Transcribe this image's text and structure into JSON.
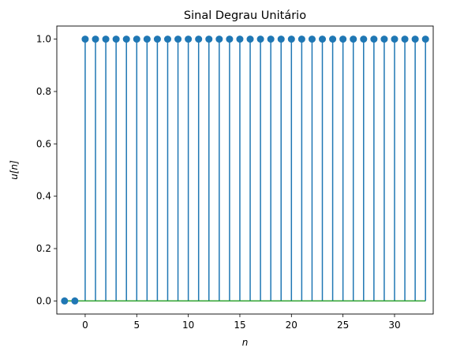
{
  "chart_data": {
    "type": "stem",
    "title": "Sinal Degrau Unitário",
    "xlabel": "n",
    "ylabel": "u[n]",
    "xlim": [
      -2.75,
      33.75
    ],
    "ylim": [
      -0.05,
      1.05
    ],
    "xticks": [
      0,
      5,
      10,
      15,
      20,
      25,
      30
    ],
    "xtick_labels": [
      "0",
      "5",
      "10",
      "15",
      "20",
      "25",
      "30"
    ],
    "yticks": [
      0.0,
      0.2,
      0.4,
      0.6,
      0.8,
      1.0
    ],
    "ytick_labels": [
      "0.0",
      "0.2",
      "0.4",
      "0.6",
      "0.8",
      "1.0"
    ],
    "grid": false,
    "series": [
      {
        "x": [
          -2,
          -1,
          0,
          1,
          2,
          3,
          4,
          5,
          6,
          7,
          8,
          9,
          10,
          11,
          12,
          13,
          14,
          15,
          16,
          17,
          18,
          19,
          20,
          21,
          22,
          23,
          24,
          25,
          26,
          27,
          28,
          29,
          30,
          31,
          32,
          33
        ],
        "y": [
          0,
          0,
          1,
          1,
          1,
          1,
          1,
          1,
          1,
          1,
          1,
          1,
          1,
          1,
          1,
          1,
          1,
          1,
          1,
          1,
          1,
          1,
          1,
          1,
          1,
          1,
          1,
          1,
          1,
          1,
          1,
          1,
          1,
          1,
          1,
          1
        ]
      }
    ],
    "colors": {
      "stem": "#1f77b4",
      "marker": "#1f77b4",
      "baseline": "#2ca02c"
    }
  }
}
